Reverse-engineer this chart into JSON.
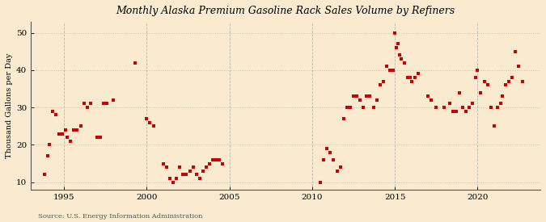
{
  "title": "Monthly Alaska Premium Gasoline Rack Sales Volume by Refiners",
  "ylabel": "Thousand Gallons per Day",
  "source": "Source: U.S. Energy Information Administration",
  "background_color": "#faebd0",
  "marker_color": "#cc0000",
  "xlim": [
    1993.0,
    2023.8
  ],
  "ylim": [
    8,
    53
  ],
  "yticks": [
    10,
    20,
    30,
    40,
    50
  ],
  "xticks": [
    1995,
    2000,
    2005,
    2010,
    2015,
    2020
  ],
  "data_points": [
    [
      1993.8,
      12
    ],
    [
      1994.0,
      17
    ],
    [
      1994.1,
      20
    ],
    [
      1994.3,
      29
    ],
    [
      1994.5,
      28
    ],
    [
      1994.7,
      23
    ],
    [
      1994.9,
      23
    ],
    [
      1995.1,
      24
    ],
    [
      1995.2,
      22
    ],
    [
      1995.4,
      21
    ],
    [
      1995.6,
      24
    ],
    [
      1995.8,
      24
    ],
    [
      1996.0,
      25
    ],
    [
      1996.2,
      31
    ],
    [
      1996.4,
      30
    ],
    [
      1996.6,
      31
    ],
    [
      1997.0,
      22
    ],
    [
      1997.2,
      22
    ],
    [
      1997.4,
      31
    ],
    [
      1997.6,
      31
    ],
    [
      1998.0,
      32
    ],
    [
      1999.3,
      42
    ],
    [
      2000.0,
      27
    ],
    [
      2000.2,
      26
    ],
    [
      2000.4,
      25
    ],
    [
      2001.0,
      15
    ],
    [
      2001.2,
      14
    ],
    [
      2001.4,
      11
    ],
    [
      2001.6,
      10
    ],
    [
      2001.8,
      11
    ],
    [
      2002.0,
      14
    ],
    [
      2002.2,
      12
    ],
    [
      2002.4,
      12
    ],
    [
      2002.6,
      13
    ],
    [
      2002.8,
      14
    ],
    [
      2003.0,
      12
    ],
    [
      2003.2,
      11
    ],
    [
      2003.4,
      13
    ],
    [
      2003.6,
      14
    ],
    [
      2003.8,
      15
    ],
    [
      2004.0,
      16
    ],
    [
      2004.2,
      16
    ],
    [
      2004.4,
      16
    ],
    [
      2004.6,
      15
    ],
    [
      2010.5,
      10
    ],
    [
      2010.7,
      16
    ],
    [
      2010.9,
      19
    ],
    [
      2011.1,
      18
    ],
    [
      2011.3,
      16
    ],
    [
      2011.5,
      13
    ],
    [
      2011.7,
      14
    ],
    [
      2011.9,
      27
    ],
    [
      2012.1,
      30
    ],
    [
      2012.3,
      30
    ],
    [
      2012.5,
      33
    ],
    [
      2012.7,
      33
    ],
    [
      2012.9,
      32
    ],
    [
      2013.1,
      30
    ],
    [
      2013.3,
      33
    ],
    [
      2013.5,
      33
    ],
    [
      2013.7,
      30
    ],
    [
      2013.9,
      32
    ],
    [
      2014.1,
      36
    ],
    [
      2014.3,
      37
    ],
    [
      2014.5,
      41
    ],
    [
      2014.7,
      40
    ],
    [
      2014.9,
      40
    ],
    [
      2015.0,
      50
    ],
    [
      2015.1,
      46
    ],
    [
      2015.2,
      47
    ],
    [
      2015.3,
      44
    ],
    [
      2015.4,
      43
    ],
    [
      2015.6,
      42
    ],
    [
      2015.8,
      38
    ],
    [
      2015.9,
      38
    ],
    [
      2016.0,
      37
    ],
    [
      2016.2,
      38
    ],
    [
      2016.4,
      39
    ],
    [
      2017.0,
      33
    ],
    [
      2017.2,
      32
    ],
    [
      2017.5,
      30
    ],
    [
      2018.0,
      30
    ],
    [
      2018.3,
      31
    ],
    [
      2018.5,
      29
    ],
    [
      2018.7,
      29
    ],
    [
      2018.9,
      34
    ],
    [
      2019.1,
      30
    ],
    [
      2019.3,
      29
    ],
    [
      2019.5,
      30
    ],
    [
      2019.7,
      31
    ],
    [
      2019.9,
      38
    ],
    [
      2020.0,
      40
    ],
    [
      2020.2,
      34
    ],
    [
      2020.4,
      37
    ],
    [
      2020.6,
      36
    ],
    [
      2020.8,
      30
    ],
    [
      2021.0,
      25
    ],
    [
      2021.2,
      30
    ],
    [
      2021.4,
      31
    ],
    [
      2021.5,
      33
    ],
    [
      2021.7,
      36
    ],
    [
      2021.9,
      37
    ],
    [
      2022.1,
      38
    ],
    [
      2022.3,
      45
    ],
    [
      2022.5,
      41
    ],
    [
      2022.7,
      37
    ]
  ]
}
